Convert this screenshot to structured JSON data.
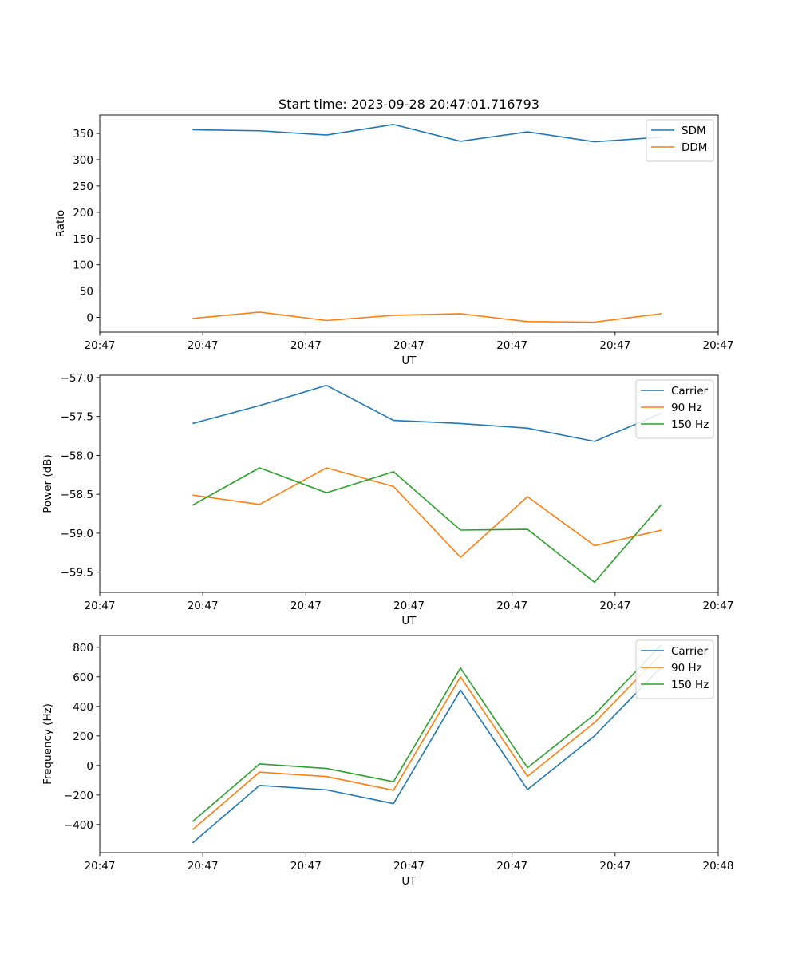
{
  "chart_data": [
    {
      "type": "line",
      "title": "Start time: 2023-09-28 20:47:01.716793",
      "xlabel": "UT",
      "ylabel": "Ratio",
      "x": [
        0.9,
        1.55,
        2.2,
        2.85,
        3.5,
        4.15,
        4.8,
        5.45
      ],
      "xlim": [
        0.0,
        6.0
      ],
      "xticks": [
        0.0,
        1.0,
        2.0,
        3.0,
        4.0,
        5.0,
        6.0
      ],
      "xtick_labels": [
        "20:47",
        "20:47",
        "20:47",
        "20:47",
        "20:47",
        "20:47",
        "20:47"
      ],
      "ylim": [
        -28,
        385
      ],
      "yticks": [
        0,
        50,
        100,
        150,
        200,
        250,
        300,
        350
      ],
      "ytick_labels": [
        "0",
        "50",
        "100",
        "150",
        "200",
        "250",
        "300",
        "350"
      ],
      "legend": "top-right",
      "series": [
        {
          "name": "SDM",
          "color": "#1f77b4",
          "values": [
            357,
            355,
            347,
            367,
            335,
            353,
            334,
            343
          ]
        },
        {
          "name": "DDM",
          "color": "#ff7f0e",
          "values": [
            -2,
            10,
            -6,
            4,
            7,
            -8,
            -9,
            7
          ]
        }
      ]
    },
    {
      "type": "line",
      "title": "",
      "xlabel": "UT",
      "ylabel": "Power (dB)",
      "x": [
        0.9,
        1.55,
        2.2,
        2.85,
        3.5,
        4.15,
        4.8,
        5.45
      ],
      "xlim": [
        0.0,
        6.0
      ],
      "xticks": [
        0.0,
        1.0,
        2.0,
        3.0,
        4.0,
        5.0,
        6.0
      ],
      "xtick_labels": [
        "20:47",
        "20:47",
        "20:47",
        "20:47",
        "20:47",
        "20:47",
        "20:47"
      ],
      "ylim": [
        -59.76,
        -56.97
      ],
      "yticks": [
        -59.5,
        -59.0,
        -58.5,
        -58.0,
        -57.5,
        -57.0
      ],
      "ytick_labels": [
        "−59.5",
        "−59.0",
        "−58.5",
        "−58.0",
        "−57.5",
        "−57.0"
      ],
      "legend": "top-right",
      "series": [
        {
          "name": "Carrier",
          "color": "#1f77b4",
          "values": [
            -57.59,
            -57.36,
            -57.1,
            -57.55,
            -57.59,
            -57.65,
            -57.82,
            -57.46
          ]
        },
        {
          "name": "90 Hz",
          "color": "#ff7f0e",
          "values": [
            -58.51,
            -58.63,
            -58.16,
            -58.4,
            -59.31,
            -58.53,
            -59.16,
            -58.96
          ]
        },
        {
          "name": "150 Hz",
          "color": "#2ca02c",
          "values": [
            -58.64,
            -58.16,
            -58.48,
            -58.21,
            -58.96,
            -58.95,
            -59.63,
            -58.63
          ]
        }
      ]
    },
    {
      "type": "line",
      "title": "",
      "xlabel": "UT",
      "ylabel": "Frequency (Hz)",
      "x": [
        0.9,
        1.55,
        2.2,
        2.85,
        3.5,
        4.15,
        4.8,
        5.45
      ],
      "xlim": [
        0.0,
        6.0
      ],
      "xticks": [
        0.0,
        1.0,
        2.0,
        3.0,
        4.0,
        5.0,
        6.0
      ],
      "xtick_labels": [
        "20:47",
        "20:47",
        "20:47",
        "20:47",
        "20:47",
        "20:47",
        "20:48"
      ],
      "ylim": [
        -590,
        880
      ],
      "yticks": [
        -400,
        -200,
        0,
        200,
        400,
        600,
        800
      ],
      "ytick_labels": [
        "−400",
        "−200",
        "0",
        "200",
        "400",
        "600",
        "800"
      ],
      "legend": "top-right",
      "series": [
        {
          "name": "Carrier",
          "color": "#1f77b4",
          "values": [
            -525,
            -135,
            -165,
            -258,
            510,
            -163,
            200,
            668
          ]
        },
        {
          "name": "90 Hz",
          "color": "#ff7f0e",
          "values": [
            -435,
            -45,
            -75,
            -168,
            600,
            -73,
            290,
            758
          ]
        },
        {
          "name": "150 Hz",
          "color": "#2ca02c",
          "values": [
            -380,
            10,
            -20,
            -110,
            660,
            -15,
            345,
            818
          ]
        }
      ]
    }
  ]
}
